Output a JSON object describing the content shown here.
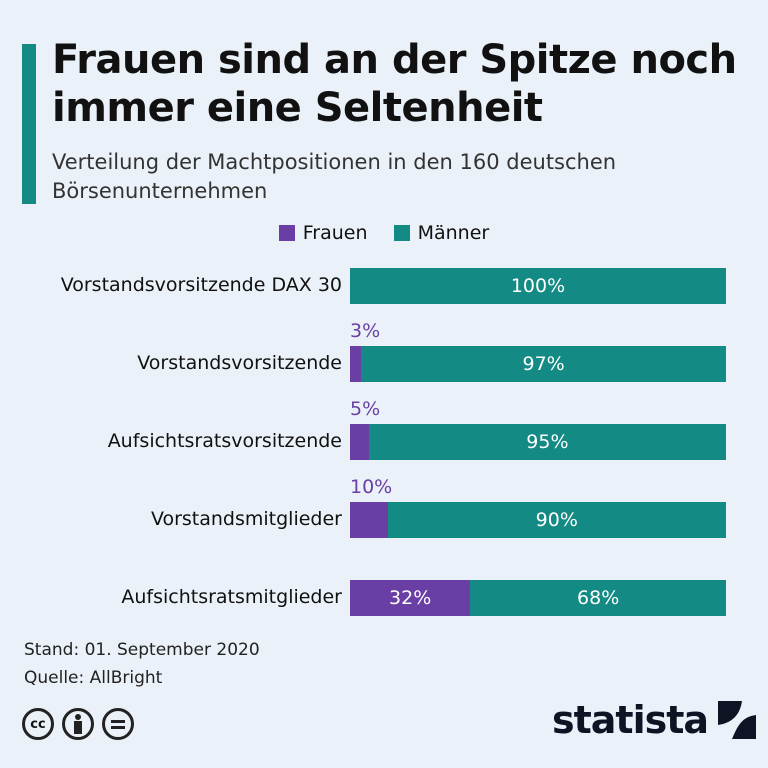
{
  "title": "Frauen sind an der Spitze noch immer eine Seltenheit",
  "subtitle": "Verteilung der Machtpositionen in den 160 deutschen Börsenunternehmen",
  "chart_data": {
    "type": "bar",
    "orientation": "horizontal",
    "stacked": true,
    "categories": [
      "Vorstandsvorsitzende DAX 30",
      "Vorstandsvorsitzende",
      "Aufsichtsratsvorsitzende",
      "Vorstandsmitglieder",
      "Aufsichtsratsmitglieder"
    ],
    "series": [
      {
        "name": "Frauen",
        "color": "#6a3fa5",
        "values": [
          0,
          3,
          5,
          10,
          32
        ],
        "labels": [
          "",
          "3%",
          "5%",
          "10%",
          "32%"
        ]
      },
      {
        "name": "Männer",
        "color": "#138a83",
        "values": [
          100,
          97,
          95,
          90,
          68
        ],
        "labels": [
          "100%",
          "97%",
          "95%",
          "90%",
          "68%"
        ]
      }
    ],
    "xlim": [
      0,
      100
    ],
    "legend": "top"
  },
  "footer": {
    "stand": "Stand: 01. September 2020",
    "quelle": "Quelle: AllBright",
    "brand": "statista"
  },
  "license_icons": [
    "cc-icon",
    "by-icon",
    "nd-icon"
  ]
}
